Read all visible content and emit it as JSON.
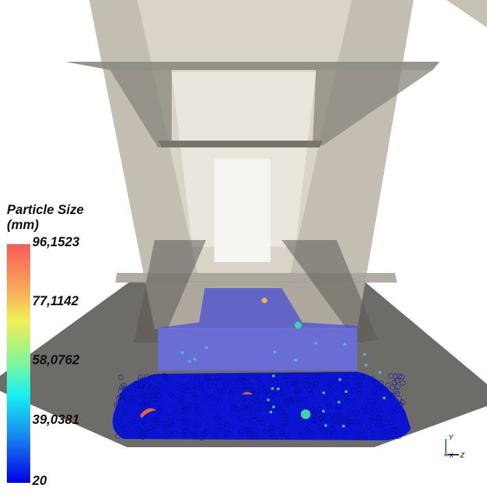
{
  "legend": {
    "title_line1": "Particle Size",
    "title_line2": "(mm)",
    "ticks": [
      "96,1523",
      "77,1142",
      "58,0762",
      "39,0381",
      "20"
    ],
    "range": [
      20,
      96.1523
    ],
    "colormap": [
      "#0000e6",
      "#1a8af0",
      "#16f2f2",
      "#7ef59a",
      "#f2ef55",
      "#f7a55a",
      "#f85a5a"
    ]
  },
  "orientation_axes": {
    "y": "Y",
    "x": "X",
    "z": "Z",
    "y_color": "#2aa02a",
    "z_color": "#1a1aa0"
  },
  "colors": {
    "floor": "#6e6c69",
    "chute": "#c9c2b6",
    "particles": "#0a14d2"
  }
}
